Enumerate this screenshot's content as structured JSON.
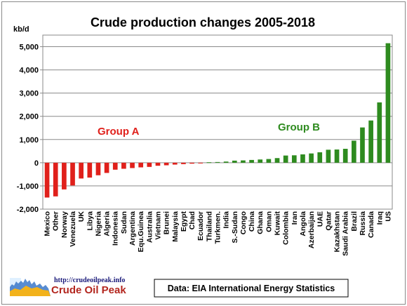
{
  "chart_data": {
    "type": "bar",
    "title": "Crude production  changes 2005-2018",
    "ylabel": "kb/d",
    "xlabel": "",
    "ylim": [
      -2000,
      5500
    ],
    "yticks": [
      -2000,
      -1000,
      0,
      1000,
      2000,
      3000,
      4000,
      5000
    ],
    "ytick_labels": [
      "-2,000",
      "-1,000",
      "0",
      "1,000",
      "2,000",
      "3,000",
      "4,000",
      "5,000"
    ],
    "grid": "horizontal",
    "categories": [
      "Mexico",
      "Other",
      "Norway",
      "Venezuela",
      "UK",
      "Libya",
      "Nigeria",
      "Algeria",
      "Indonesia",
      "Sudan",
      "Argentina",
      "Equ.Guinea",
      "Australia",
      "Vietnam",
      "Brunei",
      "Malaysia",
      "Egypt",
      "Chad",
      "Ecuador",
      "Thailand",
      "Turkmen.",
      "India",
      "S.-Sudan",
      "Congo",
      "China",
      "Ghana",
      "Oman",
      "Kuwait",
      "Colombia",
      "Iran",
      "Angola",
      "Azerbaijan",
      "UAE",
      "Qatar",
      "Kazakhstan",
      "Saudi Arabia",
      "Brazil",
      "Russia",
      "Canada",
      "Iraq",
      "US"
    ],
    "values": [
      -1500,
      -1450,
      -1150,
      -980,
      -680,
      -640,
      -540,
      -440,
      -300,
      -260,
      -230,
      -200,
      -180,
      -130,
      -110,
      -80,
      -60,
      -40,
      -30,
      20,
      30,
      50,
      90,
      100,
      120,
      140,
      160,
      200,
      310,
      320,
      360,
      400,
      450,
      560,
      570,
      600,
      950,
      1520,
      1820,
      2600,
      5150
    ],
    "colors": {
      "negative": "#e0201b",
      "positive": "#2e8b1f"
    },
    "annotations": {
      "group_a": "Group A",
      "group_b": "Group B"
    },
    "source": "Data: EIA International Energy Statistics"
  },
  "logo": {
    "url": "http://crudeoilpeak.info",
    "name": "Crude Oil Peak"
  }
}
